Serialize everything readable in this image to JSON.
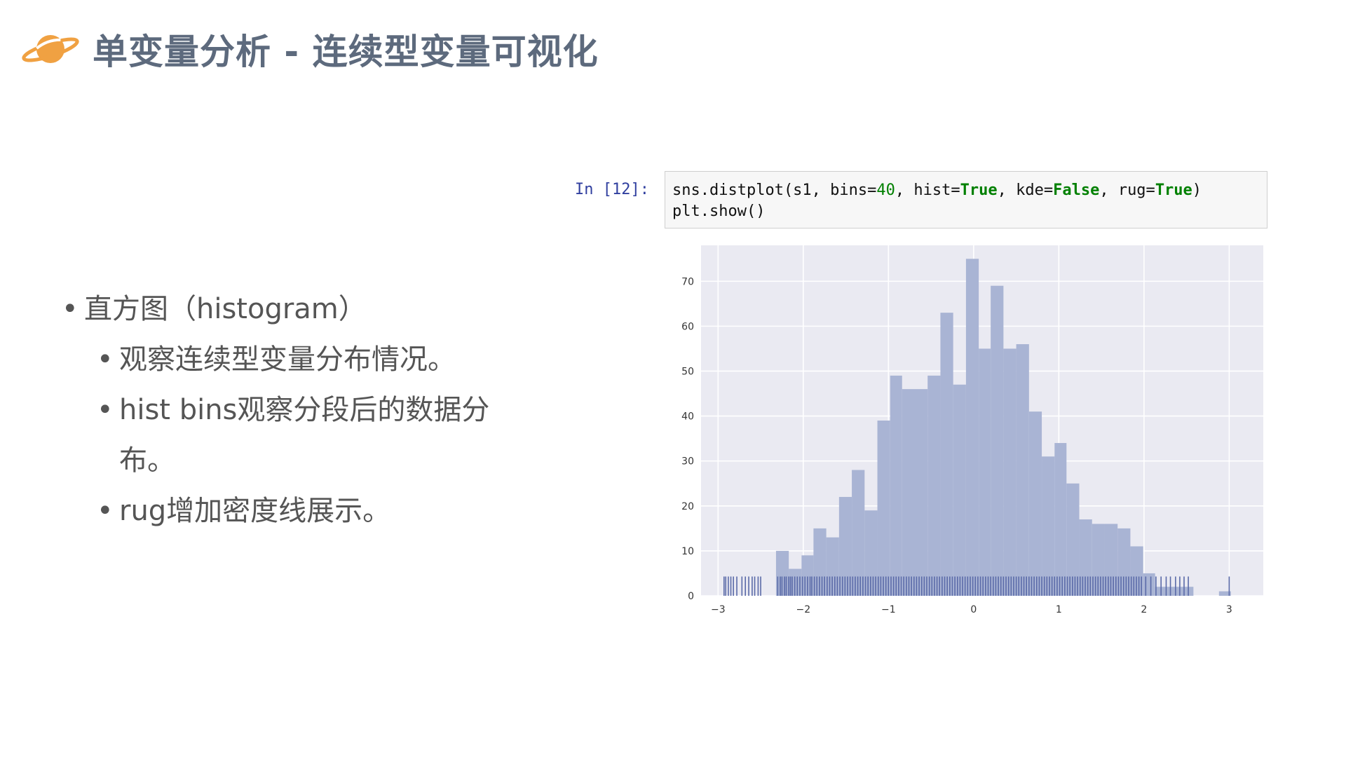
{
  "header": {
    "title": "单变量分析 - 连续型变量可视化",
    "icon": "saturn-planet-icon",
    "icon_color": "#f0a142"
  },
  "bullets": {
    "b1": "直方图（histogram）",
    "b2": "观察连续型变量分布情况。",
    "b3a": "hist bins观察分段后的数据分",
    "b3b": "布。",
    "b4": "rug增加密度线展示。",
    "marker": "•"
  },
  "code": {
    "prompt": "In [12]:",
    "line1": [
      {
        "t": "sns.distplot(s1, bins=",
        "c": "plain"
      },
      {
        "t": "40",
        "c": "num"
      },
      {
        "t": ", hist=",
        "c": "plain"
      },
      {
        "t": "True",
        "c": "kw"
      },
      {
        "t": ", kde=",
        "c": "plain"
      },
      {
        "t": "False",
        "c": "kw"
      },
      {
        "t": ", rug=",
        "c": "plain"
      },
      {
        "t": "True",
        "c": "kw"
      },
      {
        "t": ")",
        "c": "plain"
      }
    ],
    "line2": "plt.show()"
  },
  "chart_data": {
    "type": "bar",
    "xlim": [
      -3.2,
      3.4
    ],
    "ylim": [
      0,
      78
    ],
    "xticks": [
      -3,
      -2,
      -1,
      0,
      1,
      2,
      3
    ],
    "xtick_labels": [
      "−3",
      "−2",
      "−1",
      "0",
      "1",
      "2",
      "3"
    ],
    "yticks": [
      0,
      10,
      20,
      30,
      40,
      50,
      60,
      70
    ],
    "grid": true,
    "bar_color": "#a9b4d4",
    "rug_color": "#5a6aa8",
    "plot_bg": "#eaeaf2",
    "bins": [
      {
        "x0": -2.32,
        "x1": -2.17,
        "count": 10
      },
      {
        "x0": -2.17,
        "x1": -2.02,
        "count": 6
      },
      {
        "x0": -2.02,
        "x1": -1.88,
        "count": 9
      },
      {
        "x0": -1.88,
        "x1": -1.73,
        "count": 15
      },
      {
        "x0": -1.73,
        "x1": -1.58,
        "count": 13
      },
      {
        "x0": -1.58,
        "x1": -1.43,
        "count": 22
      },
      {
        "x0": -1.43,
        "x1": -1.28,
        "count": 28
      },
      {
        "x0": -1.28,
        "x1": -1.13,
        "count": 19
      },
      {
        "x0": -1.13,
        "x1": -0.98,
        "count": 39
      },
      {
        "x0": -0.98,
        "x1": -0.84,
        "count": 49
      },
      {
        "x0": -0.84,
        "x1": -0.69,
        "count": 46
      },
      {
        "x0": -0.69,
        "x1": -0.54,
        "count": 46
      },
      {
        "x0": -0.54,
        "x1": -0.39,
        "count": 49
      },
      {
        "x0": -0.39,
        "x1": -0.24,
        "count": 63
      },
      {
        "x0": -0.24,
        "x1": -0.09,
        "count": 47
      },
      {
        "x0": -0.09,
        "x1": 0.06,
        "count": 75
      },
      {
        "x0": 0.06,
        "x1": 0.2,
        "count": 55
      },
      {
        "x0": 0.2,
        "x1": 0.35,
        "count": 69
      },
      {
        "x0": 0.35,
        "x1": 0.5,
        "count": 55
      },
      {
        "x0": 0.5,
        "x1": 0.65,
        "count": 56
      },
      {
        "x0": 0.65,
        "x1": 0.8,
        "count": 41
      },
      {
        "x0": 0.8,
        "x1": 0.95,
        "count": 31
      },
      {
        "x0": 0.95,
        "x1": 1.09,
        "count": 34
      },
      {
        "x0": 1.09,
        "x1": 1.24,
        "count": 25
      },
      {
        "x0": 1.24,
        "x1": 1.39,
        "count": 17
      },
      {
        "x0": 1.39,
        "x1": 1.54,
        "count": 16
      },
      {
        "x0": 1.54,
        "x1": 1.69,
        "count": 16
      },
      {
        "x0": 1.69,
        "x1": 1.84,
        "count": 15
      },
      {
        "x0": 1.84,
        "x1": 1.99,
        "count": 11
      },
      {
        "x0": 1.99,
        "x1": 2.13,
        "count": 5
      },
      {
        "x0": 2.13,
        "x1": 2.28,
        "count": 2
      },
      {
        "x0": 2.28,
        "x1": 2.43,
        "count": 2
      },
      {
        "x0": 2.43,
        "x1": 2.58,
        "count": 2
      },
      {
        "x0": 2.88,
        "x1": 3.02,
        "count": 1
      }
    ],
    "rug": [
      -2.93,
      -2.91,
      -2.88,
      -2.85,
      -2.82,
      -2.78,
      -2.72,
      -2.68,
      -2.64,
      -2.6,
      -2.57,
      -2.53,
      -2.5,
      -2.3,
      -2.27,
      -2.25,
      -2.22,
      -2.2,
      -2.17,
      -2.15,
      -2.13,
      -2.1,
      -2.07,
      -2.04,
      -2.01,
      -1.98,
      -1.95,
      -1.92,
      -1.9,
      -1.87,
      -1.84,
      -1.81,
      -1.78,
      -1.75,
      -1.72,
      -1.69,
      -1.66,
      -1.63,
      -1.6,
      -1.57,
      -1.54,
      -1.51,
      -1.48,
      -1.45,
      -1.42,
      -1.39,
      -1.36,
      -1.33,
      -1.3,
      -1.27,
      -1.24,
      -1.21,
      -1.18,
      -1.15,
      -1.12,
      -1.09,
      -1.06,
      -1.03,
      -1.0,
      -0.97,
      -0.94,
      -0.91,
      -0.88,
      -0.85,
      -0.82,
      -0.79,
      -0.76,
      -0.73,
      -0.7,
      -0.67,
      -0.64,
      -0.61,
      -0.58,
      -0.55,
      -0.52,
      -0.49,
      -0.46,
      -0.43,
      -0.4,
      -0.37,
      -0.34,
      -0.31,
      -0.28,
      -0.25,
      -0.22,
      -0.19,
      -0.16,
      -0.13,
      -0.1,
      -0.07,
      -0.04,
      -0.01,
      0.02,
      0.05,
      0.08,
      0.11,
      0.14,
      0.17,
      0.2,
      0.23,
      0.26,
      0.29,
      0.32,
      0.35,
      0.38,
      0.41,
      0.44,
      0.47,
      0.5,
      0.53,
      0.56,
      0.59,
      0.62,
      0.65,
      0.68,
      0.71,
      0.74,
      0.77,
      0.8,
      0.83,
      0.86,
      0.89,
      0.92,
      0.95,
      0.98,
      1.01,
      1.04,
      1.07,
      1.1,
      1.13,
      1.16,
      1.19,
      1.22,
      1.25,
      1.28,
      1.31,
      1.34,
      1.37,
      1.4,
      1.43,
      1.46,
      1.49,
      1.52,
      1.55,
      1.58,
      1.61,
      1.64,
      1.67,
      1.7,
      1.73,
      1.76,
      1.79,
      1.82,
      1.85,
      1.88,
      1.91,
      1.94,
      1.97,
      2.02,
      2.08,
      2.14,
      2.2,
      2.26,
      2.31,
      2.37,
      2.42,
      2.47,
      2.52,
      3.0
    ]
  }
}
